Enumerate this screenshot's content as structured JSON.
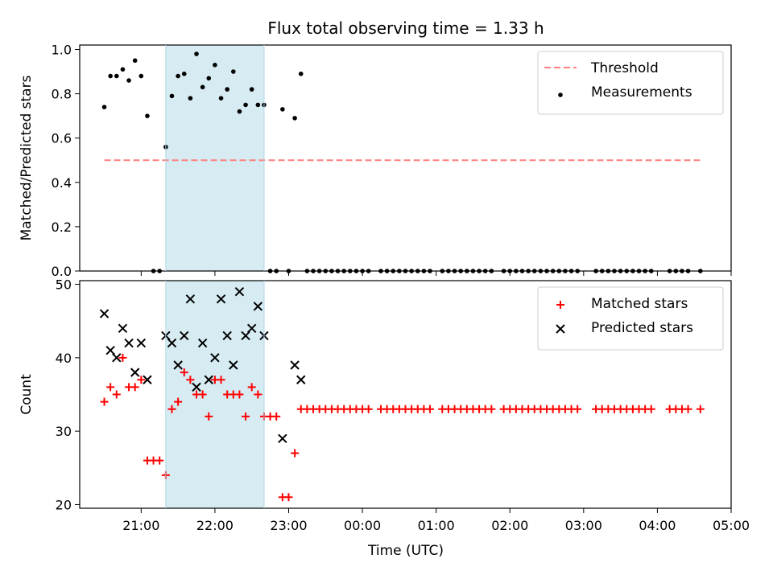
{
  "title": "Flux total observing time = 1.33 h",
  "chart_data": [
    {
      "type": "scatter",
      "ylabel": "Matched/Predicted stars",
      "ylim": [
        0,
        1.02
      ],
      "yticks": [
        0.0,
        0.2,
        0.4,
        0.6,
        0.8,
        1.0
      ],
      "ytick_labels": [
        "0.0",
        "0.2",
        "0.4",
        "0.6",
        "0.8",
        "1.0"
      ],
      "legend_position": "top-right",
      "threshold": {
        "name": "Threshold",
        "value": 0.5,
        "x_range": [
          "20:30",
          "04:35"
        ],
        "color": "#ff7f7f",
        "style": "dashed"
      },
      "highlight": {
        "x_start": "21:20",
        "x_end": "22:40",
        "color": "#add8e6"
      },
      "series": [
        {
          "name": "Measurements",
          "color": "#000000",
          "marker": "dot",
          "points": [
            [
              "20:30",
              0.74
            ],
            [
              "20:35",
              0.88
            ],
            [
              "20:40",
              0.88
            ],
            [
              "20:45",
              0.91
            ],
            [
              "20:50",
              0.86
            ],
            [
              "20:55",
              0.95
            ],
            [
              "21:00",
              0.88
            ],
            [
              "21:05",
              0.7
            ],
            [
              "21:10",
              0.0
            ],
            [
              "21:15",
              0.0
            ],
            [
              "21:20",
              0.56
            ],
            [
              "21:25",
              0.79
            ],
            [
              "21:30",
              0.88
            ],
            [
              "21:35",
              0.89
            ],
            [
              "21:40",
              0.78
            ],
            [
              "21:45",
              0.98
            ],
            [
              "21:50",
              0.83
            ],
            [
              "21:55",
              0.87
            ],
            [
              "22:00",
              0.93
            ],
            [
              "22:05",
              0.78
            ],
            [
              "22:10",
              0.82
            ],
            [
              "22:15",
              0.9
            ],
            [
              "22:20",
              0.72
            ],
            [
              "22:25",
              0.75
            ],
            [
              "22:30",
              0.82
            ],
            [
              "22:35",
              0.75
            ],
            [
              "22:40",
              0.75
            ],
            [
              "22:45",
              0.0
            ],
            [
              "22:50",
              0.0
            ],
            [
              "22:55",
              0.73
            ],
            [
              "23:00",
              0.0
            ],
            [
              "23:05",
              0.69
            ],
            [
              "23:10",
              0.89
            ],
            [
              "23:15",
              0.0
            ],
            [
              "23:20",
              0.0
            ],
            [
              "23:25",
              0.0
            ],
            [
              "23:30",
              0.0
            ],
            [
              "23:35",
              0.0
            ],
            [
              "23:40",
              0.0
            ],
            [
              "23:45",
              0.0
            ],
            [
              "23:50",
              0.0
            ],
            [
              "23:55",
              0.0
            ],
            [
              "00:00",
              0.0
            ],
            [
              "00:05",
              0.0
            ],
            [
              "00:15",
              0.0
            ],
            [
              "00:20",
              0.0
            ],
            [
              "00:25",
              0.0
            ],
            [
              "00:30",
              0.0
            ],
            [
              "00:35",
              0.0
            ],
            [
              "00:40",
              0.0
            ],
            [
              "00:45",
              0.0
            ],
            [
              "00:50",
              0.0
            ],
            [
              "00:55",
              0.0
            ],
            [
              "01:05",
              0.0
            ],
            [
              "01:10",
              0.0
            ],
            [
              "01:15",
              0.0
            ],
            [
              "01:20",
              0.0
            ],
            [
              "01:25",
              0.0
            ],
            [
              "01:30",
              0.0
            ],
            [
              "01:35",
              0.0
            ],
            [
              "01:40",
              0.0
            ],
            [
              "01:45",
              0.0
            ],
            [
              "01:55",
              0.0
            ],
            [
              "02:00",
              0.0
            ],
            [
              "02:05",
              0.0
            ],
            [
              "02:10",
              0.0
            ],
            [
              "02:15",
              0.0
            ],
            [
              "02:20",
              0.0
            ],
            [
              "02:25",
              0.0
            ],
            [
              "02:30",
              0.0
            ],
            [
              "02:35",
              0.0
            ],
            [
              "02:40",
              0.0
            ],
            [
              "02:45",
              0.0
            ],
            [
              "02:50",
              0.0
            ],
            [
              "02:55",
              0.0
            ],
            [
              "03:10",
              0.0
            ],
            [
              "03:15",
              0.0
            ],
            [
              "03:20",
              0.0
            ],
            [
              "03:25",
              0.0
            ],
            [
              "03:30",
              0.0
            ],
            [
              "03:35",
              0.0
            ],
            [
              "03:40",
              0.0
            ],
            [
              "03:45",
              0.0
            ],
            [
              "03:50",
              0.0
            ],
            [
              "03:55",
              0.0
            ],
            [
              "04:10",
              0.0
            ],
            [
              "04:15",
              0.0
            ],
            [
              "04:20",
              0.0
            ],
            [
              "04:25",
              0.0
            ],
            [
              "04:35",
              0.0
            ]
          ]
        }
      ]
    },
    {
      "type": "scatter",
      "xlabel": "Time (UTC)",
      "ylabel": "Count",
      "ylim": [
        19.5,
        50.5
      ],
      "yticks": [
        20,
        30,
        40,
        50
      ],
      "ytick_labels": [
        "20",
        "30",
        "40",
        "50"
      ],
      "xticks": [
        "21:00",
        "22:00",
        "23:00",
        "00:00",
        "01:00",
        "02:00",
        "03:00",
        "04:00",
        "05:00"
      ],
      "xlim": [
        "20:10",
        "05:00"
      ],
      "legend_position": "top-right",
      "highlight": {
        "x_start": "21:20",
        "x_end": "22:40",
        "color": "#add8e6"
      },
      "series": [
        {
          "name": "Matched stars",
          "color": "#ff0000",
          "marker": "plus",
          "points": [
            [
              "20:30",
              34
            ],
            [
              "20:35",
              36
            ],
            [
              "20:40",
              35
            ],
            [
              "20:45",
              40
            ],
            [
              "20:50",
              36
            ],
            [
              "20:55",
              36
            ],
            [
              "21:00",
              37
            ],
            [
              "21:05",
              26
            ],
            [
              "21:10",
              26
            ],
            [
              "21:15",
              26
            ],
            [
              "21:20",
              24
            ],
            [
              "21:25",
              33
            ],
            [
              "21:30",
              34
            ],
            [
              "21:35",
              38
            ],
            [
              "21:40",
              37
            ],
            [
              "21:45",
              35
            ],
            [
              "21:50",
              35
            ],
            [
              "21:55",
              32
            ],
            [
              "22:00",
              37
            ],
            [
              "22:05",
              37
            ],
            [
              "22:10",
              35
            ],
            [
              "22:15",
              35
            ],
            [
              "22:20",
              35
            ],
            [
              "22:25",
              32
            ],
            [
              "22:30",
              36
            ],
            [
              "22:35",
              35
            ],
            [
              "22:40",
              32
            ],
            [
              "22:45",
              32
            ],
            [
              "22:50",
              32
            ],
            [
              "22:55",
              21
            ],
            [
              "23:00",
              21
            ],
            [
              "23:05",
              27
            ],
            [
              "23:10",
              33
            ],
            [
              "23:15",
              33
            ],
            [
              "23:20",
              33
            ],
            [
              "23:25",
              33
            ],
            [
              "23:30",
              33
            ],
            [
              "23:35",
              33
            ],
            [
              "23:40",
              33
            ],
            [
              "23:45",
              33
            ],
            [
              "23:50",
              33
            ],
            [
              "23:55",
              33
            ],
            [
              "00:00",
              33
            ],
            [
              "00:05",
              33
            ],
            [
              "00:15",
              33
            ],
            [
              "00:20",
              33
            ],
            [
              "00:25",
              33
            ],
            [
              "00:30",
              33
            ],
            [
              "00:35",
              33
            ],
            [
              "00:40",
              33
            ],
            [
              "00:45",
              33
            ],
            [
              "00:50",
              33
            ],
            [
              "00:55",
              33
            ],
            [
              "01:05",
              33
            ],
            [
              "01:10",
              33
            ],
            [
              "01:15",
              33
            ],
            [
              "01:20",
              33
            ],
            [
              "01:25",
              33
            ],
            [
              "01:30",
              33
            ],
            [
              "01:35",
              33
            ],
            [
              "01:40",
              33
            ],
            [
              "01:45",
              33
            ],
            [
              "01:55",
              33
            ],
            [
              "02:00",
              33
            ],
            [
              "02:05",
              33
            ],
            [
              "02:10",
              33
            ],
            [
              "02:15",
              33
            ],
            [
              "02:20",
              33
            ],
            [
              "02:25",
              33
            ],
            [
              "02:30",
              33
            ],
            [
              "02:35",
              33
            ],
            [
              "02:40",
              33
            ],
            [
              "02:45",
              33
            ],
            [
              "02:50",
              33
            ],
            [
              "02:55",
              33
            ],
            [
              "03:10",
              33
            ],
            [
              "03:15",
              33
            ],
            [
              "03:20",
              33
            ],
            [
              "03:25",
              33
            ],
            [
              "03:30",
              33
            ],
            [
              "03:35",
              33
            ],
            [
              "03:40",
              33
            ],
            [
              "03:45",
              33
            ],
            [
              "03:50",
              33
            ],
            [
              "03:55",
              33
            ],
            [
              "04:10",
              33
            ],
            [
              "04:15",
              33
            ],
            [
              "04:20",
              33
            ],
            [
              "04:25",
              33
            ],
            [
              "04:35",
              33
            ]
          ]
        },
        {
          "name": "Predicted stars",
          "color": "#000000",
          "marker": "x",
          "points": [
            [
              "20:30",
              46
            ],
            [
              "20:35",
              41
            ],
            [
              "20:40",
              40
            ],
            [
              "20:45",
              44
            ],
            [
              "20:50",
              42
            ],
            [
              "20:55",
              38
            ],
            [
              "21:00",
              42
            ],
            [
              "21:05",
              37
            ],
            [
              "21:20",
              43
            ],
            [
              "21:25",
              42
            ],
            [
              "21:30",
              39
            ],
            [
              "21:35",
              43
            ],
            [
              "21:40",
              48
            ],
            [
              "21:45",
              36
            ],
            [
              "21:50",
              42
            ],
            [
              "21:55",
              37
            ],
            [
              "22:00",
              40
            ],
            [
              "22:05",
              48
            ],
            [
              "22:10",
              43
            ],
            [
              "22:15",
              39
            ],
            [
              "22:20",
              49
            ],
            [
              "22:25",
              43
            ],
            [
              "22:30",
              44
            ],
            [
              "22:35",
              47
            ],
            [
              "22:40",
              43
            ],
            [
              "22:55",
              29
            ],
            [
              "23:05",
              39
            ],
            [
              "23:10",
              37
            ]
          ]
        }
      ]
    }
  ]
}
